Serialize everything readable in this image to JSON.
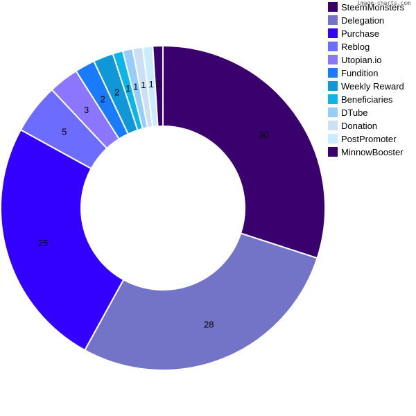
{
  "watermark": "image-charts.com",
  "chart_data": {
    "type": "pie",
    "donut": true,
    "legend_position": "top-right",
    "labels": [
      "SteemMonsters",
      "Delegation",
      "Purchase",
      "Reblog",
      "Utopian.io",
      "Fundition",
      "Weekly Reward",
      "Beneficiaries",
      "DTube",
      "Donation",
      "PostPromoter",
      "MinnowBooster"
    ],
    "values": [
      30,
      28,
      25,
      5,
      3,
      2,
      2,
      1,
      1,
      1,
      1,
      1
    ],
    "colors": [
      "#3a016e",
      "#7373c7",
      "#3300ff",
      "#6c6cff",
      "#8c75ff",
      "#1a7bff",
      "#0f97d8",
      "#0eb4e6",
      "#96cdfa",
      "#cce0f5",
      "#c9ecff",
      "#3a016e"
    ]
  }
}
